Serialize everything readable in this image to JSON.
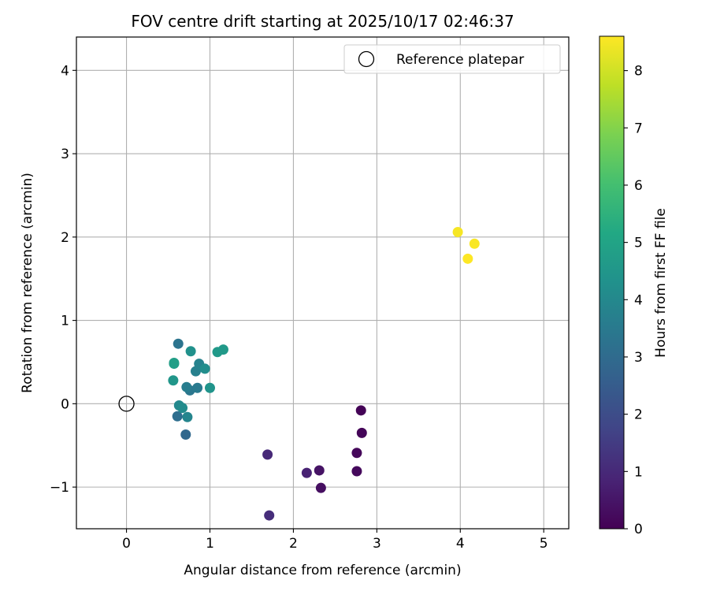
{
  "chart_data": {
    "type": "scatter",
    "title": "FOV centre drift starting at 2025/10/17 02:46:37",
    "xlabel": "Angular distance from reference (arcmin)",
    "ylabel": "Rotation from reference (arcmin)",
    "xlim": [
      -0.6,
      5.3
    ],
    "ylim": [
      -1.5,
      4.4
    ],
    "xticks": [
      0,
      1,
      2,
      3,
      4,
      5
    ],
    "yticks": [
      -1,
      0,
      1,
      2,
      3,
      4
    ],
    "xtick_labels": [
      "0",
      "1",
      "2",
      "3",
      "4",
      "5"
    ],
    "ytick_labels": [
      "−1",
      "0",
      "1",
      "2",
      "3",
      "4"
    ],
    "grid": true,
    "legend": {
      "position": "top-right",
      "entries": [
        {
          "label": "Reference platepar",
          "marker": "open-circle"
        }
      ]
    },
    "reference": {
      "x": 0,
      "y": 0
    },
    "colorbar": {
      "label": "Hours from first FF file",
      "range": [
        0,
        8.6
      ],
      "ticks": [
        0,
        1,
        2,
        3,
        4,
        5,
        6,
        7,
        8
      ],
      "tick_labels": [
        "0",
        "1",
        "2",
        "3",
        "4",
        "5",
        "6",
        "7",
        "8"
      ],
      "colormap": "viridis"
    },
    "points": [
      {
        "x": 2.81,
        "y": -0.08,
        "hours": 0.05
      },
      {
        "x": 2.82,
        "y": -0.35,
        "hours": 0.1
      },
      {
        "x": 2.76,
        "y": -0.59,
        "hours": 0.15
      },
      {
        "x": 2.76,
        "y": -0.81,
        "hours": 0.2
      },
      {
        "x": 2.33,
        "y": -1.01,
        "hours": 0.35
      },
      {
        "x": 2.31,
        "y": -0.8,
        "hours": 0.45
      },
      {
        "x": 2.16,
        "y": -0.83,
        "hours": 0.8
      },
      {
        "x": 1.69,
        "y": -0.61,
        "hours": 1.0
      },
      {
        "x": 1.71,
        "y": -1.34,
        "hours": 1.1
      },
      {
        "x": 0.71,
        "y": -0.37,
        "hours": 2.9
      },
      {
        "x": 0.61,
        "y": -0.15,
        "hours": 3.1
      },
      {
        "x": 0.62,
        "y": 0.72,
        "hours": 3.3
      },
      {
        "x": 0.76,
        "y": 0.16,
        "hours": 3.4
      },
      {
        "x": 0.85,
        "y": 0.19,
        "hours": 3.5
      },
      {
        "x": 0.72,
        "y": 0.2,
        "hours": 3.6
      },
      {
        "x": 0.83,
        "y": 0.39,
        "hours": 3.7
      },
      {
        "x": 0.87,
        "y": 0.48,
        "hours": 3.8
      },
      {
        "x": 0.73,
        "y": -0.16,
        "hours": 3.9
      },
      {
        "x": 0.63,
        "y": -0.02,
        "hours": 4.0
      },
      {
        "x": 0.67,
        "y": -0.05,
        "hours": 4.1
      },
      {
        "x": 0.94,
        "y": 0.42,
        "hours": 4.2
      },
      {
        "x": 0.77,
        "y": 0.63,
        "hours": 4.3
      },
      {
        "x": 1.0,
        "y": 0.19,
        "hours": 4.4
      },
      {
        "x": 0.56,
        "y": 0.28,
        "hours": 4.5
      },
      {
        "x": 1.09,
        "y": 0.62,
        "hours": 4.6
      },
      {
        "x": 1.16,
        "y": 0.65,
        "hours": 4.6
      },
      {
        "x": 0.57,
        "y": 0.48,
        "hours": 4.7
      },
      {
        "x": 0.57,
        "y": 0.49,
        "hours": 4.8
      },
      {
        "x": 3.97,
        "y": 2.06,
        "hours": 8.5
      },
      {
        "x": 4.17,
        "y": 1.92,
        "hours": 8.55
      },
      {
        "x": 4.09,
        "y": 1.74,
        "hours": 8.6
      }
    ]
  }
}
